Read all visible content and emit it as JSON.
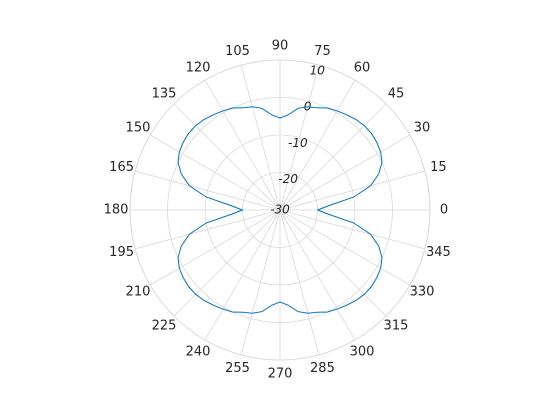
{
  "chart_data": {
    "type": "polar",
    "color": "#0072bd",
    "theta": [
      0,
      5,
      10,
      15,
      20,
      25,
      30,
      35,
      40,
      45,
      50,
      55,
      60,
      65,
      70,
      75,
      80,
      85,
      90,
      95,
      100,
      105,
      110,
      115,
      120,
      125,
      130,
      135,
      140,
      145,
      150,
      155,
      160,
      165,
      170,
      175,
      180,
      185,
      190,
      195,
      200,
      205,
      210,
      215,
      220,
      225,
      230,
      235,
      240,
      245,
      250,
      255,
      260,
      265,
      270,
      275,
      280,
      285,
      290,
      295,
      300,
      305,
      310,
      315,
      320,
      325,
      330,
      335,
      340,
      345,
      350,
      355,
      360
    ],
    "values": [
      -20,
      -17,
      -10,
      -5,
      -2,
      0,
      1,
      1.5,
      1.8,
      1.8,
      1.5,
      1,
      0.5,
      0,
      -1,
      -1.5,
      -2.5,
      -4.5,
      -5.5,
      -4.5,
      -2.5,
      -1.5,
      -1,
      0,
      0.5,
      1,
      1.5,
      1.8,
      1.8,
      1.5,
      1,
      0,
      -2,
      -5,
      -10,
      -17,
      -20,
      -17,
      -10,
      -5,
      -2,
      0,
      1,
      1.5,
      1.8,
      1.8,
      1.5,
      1,
      0.5,
      0,
      -1,
      -1.5,
      -2.5,
      -4.5,
      -5.5,
      -4.5,
      -2.5,
      -1.5,
      -1,
      0,
      0.5,
      1,
      1.5,
      1.8,
      1.8,
      1.5,
      1,
      0,
      -2,
      -5,
      -10,
      -17,
      -20
    ],
    "rlim": [
      -30,
      10
    ],
    "rticks": [
      -30,
      -20,
      -10,
      0,
      10
    ],
    "thetaticks": [
      0,
      15,
      30,
      45,
      60,
      75,
      90,
      105,
      120,
      135,
      150,
      165,
      180,
      195,
      210,
      225,
      240,
      255,
      270,
      285,
      300,
      315,
      330,
      345
    ],
    "grid": true
  }
}
